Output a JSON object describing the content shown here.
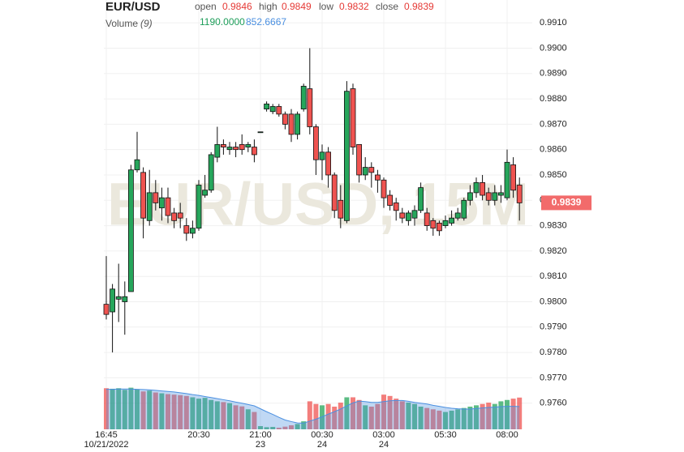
{
  "chart_data": {
    "type": "candlestick",
    "title": "EUR/USD",
    "watermark": "EUR/USD, 15M",
    "labels": {
      "open": "open",
      "high": "high",
      "low": "low",
      "close": "close"
    },
    "categories": [
      "16:45",
      null,
      null,
      null,
      null,
      null,
      null,
      null,
      null,
      null,
      null,
      null,
      null,
      null,
      null,
      "20:30",
      null,
      null,
      null,
      null,
      null,
      null,
      null,
      null,
      null,
      "21:00",
      null,
      null,
      null,
      null,
      null,
      null,
      null,
      null,
      null,
      "00:30",
      null,
      null,
      null,
      null,
      null,
      null,
      null,
      null,
      null,
      "03:00",
      null,
      null,
      null,
      null,
      null,
      null,
      null,
      null,
      null,
      "05:30",
      null,
      null,
      null,
      null,
      null,
      null,
      null,
      null,
      null,
      "08:00",
      null,
      null
    ],
    "date_labels": [
      "10/21/2022",
      null,
      null,
      null,
      null,
      null,
      null,
      null,
      null,
      null,
      null,
      null,
      null,
      null,
      null,
      null,
      null,
      null,
      null,
      null,
      null,
      null,
      null,
      null,
      null,
      "23",
      null,
      null,
      null,
      null,
      null,
      null,
      null,
      null,
      null,
      "24",
      null,
      null,
      null,
      null,
      null,
      null,
      null,
      null,
      null,
      "24",
      null,
      null,
      null,
      null,
      null,
      null,
      null,
      null,
      null,
      null,
      null,
      null,
      null,
      null,
      null,
      null,
      null,
      null,
      null,
      null,
      null,
      null
    ],
    "open": [
      0.9799,
      0.9796,
      0.9801,
      0.98,
      0.9804,
      0.9852,
      0.9851,
      0.9832,
      0.9843,
      0.9837,
      0.9841,
      0.9835,
      0.9835,
      0.983,
      0.9827,
      0.9829,
      0.9842,
      0.9844,
      0.9857,
      0.9862,
      0.986,
      0.9861,
      0.9862,
      0.9861,
      0.9861,
      0.9867,
      0.9876,
      0.9875,
      0.9877,
      0.9874,
      0.9874,
      0.9866,
      0.9876,
      0.9884,
      0.9869,
      0.9856,
      0.9859,
      0.985,
      0.984,
      0.9832,
      0.9884,
      0.9862,
      0.985,
      0.9853,
      0.985,
      0.9848,
      0.9842,
      0.9839,
      0.9835,
      0.9832,
      0.9833,
      0.9836,
      0.9835,
      0.9832,
      0.9831,
      0.983,
      0.9831,
      0.9833,
      0.9833,
      0.984,
      0.9843,
      0.9847,
      0.9843,
      0.984,
      0.9842,
      0.9841,
      0.9854,
      0.9846
    ],
    "high": [
      0.9818,
      0.9807,
      0.9815,
      0.9808,
      0.9854,
      0.9867,
      0.9853,
      0.9852,
      0.9848,
      0.9845,
      0.9845,
      0.9837,
      0.9839,
      0.9833,
      0.9832,
      0.9848,
      0.985,
      0.9859,
      0.9869,
      0.9864,
      0.9863,
      0.9863,
      0.9866,
      0.9863,
      0.9864,
      0.9867,
      0.9879,
      0.9878,
      0.9878,
      0.9875,
      0.9876,
      0.9875,
      0.9886,
      0.99,
      0.987,
      0.9862,
      0.9861,
      0.9851,
      0.9846,
      0.9887,
      0.9886,
      0.9862,
      0.9857,
      0.9855,
      0.9852,
      0.9849,
      0.9844,
      0.9841,
      0.9837,
      0.9836,
      0.9838,
      0.9847,
      0.9837,
      0.9833,
      0.9832,
      0.9834,
      0.9836,
      0.9837,
      0.9841,
      0.9846,
      0.9849,
      0.985,
      0.9845,
      0.9846,
      0.9846,
      0.986,
      0.9857,
      0.9849
    ],
    "low": [
      0.9793,
      0.978,
      0.9792,
      0.9787,
      0.9804,
      0.9851,
      0.9825,
      0.983,
      0.9836,
      0.9832,
      0.9831,
      0.9829,
      0.9829,
      0.9824,
      0.9825,
      0.9828,
      0.9841,
      0.9843,
      0.9855,
      0.9858,
      0.9858,
      0.9857,
      0.9858,
      0.9859,
      0.9855,
      0.9867,
      0.9875,
      0.9874,
      0.9873,
      0.9868,
      0.9863,
      0.9864,
      0.9875,
      0.9866,
      0.985,
      0.9848,
      0.9845,
      0.9833,
      0.9829,
      0.9831,
      0.9858,
      0.9847,
      0.9848,
      0.9845,
      0.9843,
      0.9837,
      0.9836,
      0.9832,
      0.9831,
      0.983,
      0.983,
      0.9835,
      0.9828,
      0.9826,
      0.9826,
      0.9829,
      0.983,
      0.9832,
      0.9832,
      0.9838,
      0.9841,
      0.984,
      0.9838,
      0.9838,
      0.9839,
      0.984,
      0.9841,
      0.9832
    ],
    "close": [
      0.9795,
      0.9805,
      0.9802,
      0.9802,
      0.9852,
      0.9856,
      0.9833,
      0.9843,
      0.9839,
      0.9841,
      0.9834,
      0.9832,
      0.9833,
      0.9827,
      0.9829,
      0.9846,
      0.9844,
      0.9858,
      0.9862,
      0.9861,
      0.9861,
      0.986,
      0.986,
      0.9862,
      0.9858,
      0.9867,
      0.9878,
      0.9877,
      0.9874,
      0.987,
      0.9866,
      0.9874,
      0.9885,
      0.9869,
      0.9856,
      0.9859,
      0.985,
      0.9836,
      0.9833,
      0.9883,
      0.9861,
      0.985,
      0.9853,
      0.9851,
      0.9848,
      0.9841,
      0.9838,
      0.9836,
      0.9833,
      0.9835,
      0.9836,
      0.9845,
      0.983,
      0.9829,
      0.9828,
      0.9832,
      0.9833,
      0.9835,
      0.984,
      0.9843,
      0.9847,
      0.9842,
      0.984,
      0.9843,
      0.9843,
      0.9855,
      0.9844,
      0.9839
    ],
    "ylim": [
      0.975,
      0.9919
    ],
    "yticks": [
      {
        "value": 0.976,
        "label": "0.9760"
      },
      {
        "value": 0.977,
        "label": "0.9770"
      },
      {
        "value": 0.978,
        "label": "0.9780"
      },
      {
        "value": 0.979,
        "label": "0.9790"
      },
      {
        "value": 0.98,
        "label": "0.9800"
      },
      {
        "value": 0.981,
        "label": "0.9810"
      },
      {
        "value": 0.982,
        "label": "0.9820"
      },
      {
        "value": 0.983,
        "label": "0.9830"
      },
      {
        "value": 0.984,
        "label": "0.9840"
      },
      {
        "value": 0.985,
        "label": "0.9850"
      },
      {
        "value": 0.986,
        "label": "0.9860"
      },
      {
        "value": 0.987,
        "label": "0.9870"
      },
      {
        "value": 0.988,
        "label": "0.9880"
      },
      {
        "value": 0.989,
        "label": "0.9890"
      },
      {
        "value": 0.99,
        "label": "0.9900"
      },
      {
        "value": 0.991,
        "label": "0.9910"
      }
    ],
    "grid": true,
    "up_color": "#26a65b",
    "down_color": "#ef5350",
    "volume": {
      "name": "Volume",
      "period": "(9)",
      "values": [
        1540,
        1520,
        1540,
        1480,
        1560,
        1500,
        1420,
        1450,
        1380,
        1350,
        1320,
        1300,
        1280,
        1250,
        1200,
        1150,
        1180,
        1100,
        1050,
        1020,
        980,
        900,
        860,
        750,
        650,
        120,
        80,
        90,
        60,
        100,
        150,
        200,
        300,
        1050,
        950,
        900,
        950,
        850,
        1000,
        1200,
        1200,
        1100,
        900,
        850,
        950,
        1300,
        1250,
        1150,
        1050,
        1000,
        950,
        850,
        800,
        750,
        700,
        650,
        700,
        750,
        800,
        850,
        900,
        950,
        1000,
        950,
        1050,
        1100,
        1150,
        1190
      ],
      "value_label": "1190.0000",
      "ma": [
        1500,
        1500,
        1510,
        1510,
        1510,
        1500,
        1490,
        1480,
        1460,
        1440,
        1420,
        1400,
        1370,
        1340,
        1300,
        1270,
        1230,
        1190,
        1150,
        1110,
        1070,
        1020,
        980,
        930,
        880,
        770,
        660,
        560,
        450,
        350,
        290,
        240,
        230,
        310,
        380,
        470,
        570,
        660,
        760,
        880,
        990,
        1060,
        1040,
        1010,
        1010,
        1040,
        1070,
        1080,
        1080,
        1050,
        1010,
        980,
        950,
        900,
        860,
        820,
        790,
        770,
        760,
        760,
        780,
        800,
        820,
        830,
        850,
        860,
        860,
        852.6667
      ],
      "ma_label": "852.6667",
      "ma_color": "#4a8fe0",
      "ylim": [
        0,
        1700
      ]
    }
  }
}
